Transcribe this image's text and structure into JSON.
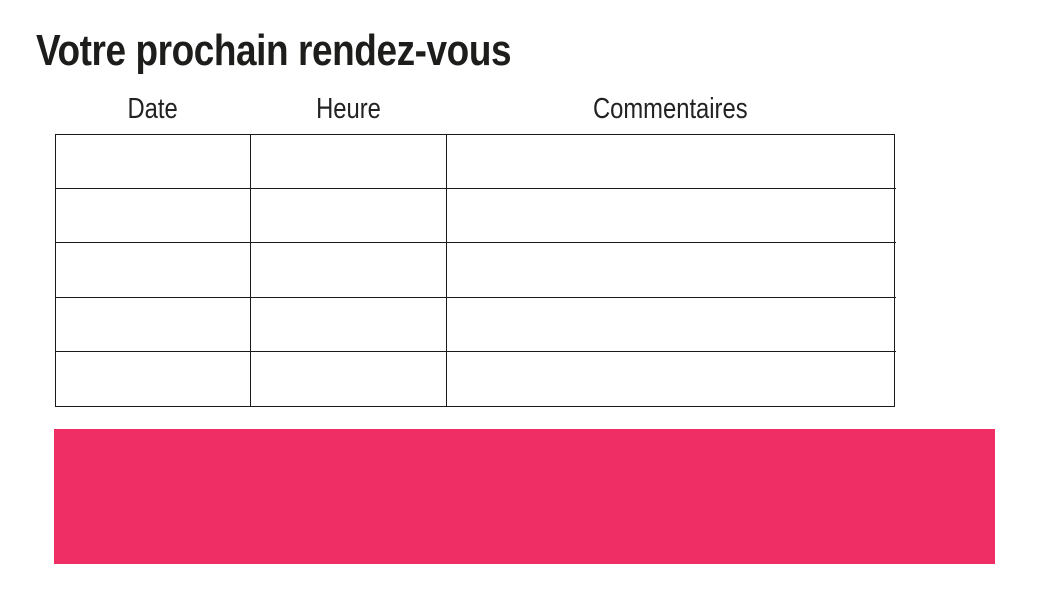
{
  "page": {
    "title": "Votre prochain rendez-vous"
  },
  "appointment_table": {
    "columns": [
      {
        "label": "Date"
      },
      {
        "label": "Heure"
      },
      {
        "label": "Commentaires"
      }
    ],
    "rows": [
      [
        "",
        "",
        ""
      ],
      [
        "",
        "",
        ""
      ],
      [
        "",
        "",
        ""
      ],
      [
        "",
        "",
        ""
      ],
      [
        "",
        "",
        ""
      ]
    ]
  },
  "banner": {
    "label": ""
  },
  "colors": {
    "accent_pink": "#EE2E64",
    "text": "#1D1D1B",
    "table_border": "#1A1A1A",
    "background": "#FFFFFF"
  }
}
